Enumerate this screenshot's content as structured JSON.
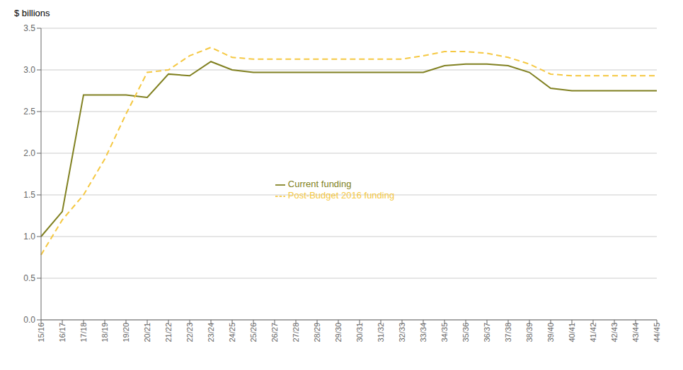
{
  "chart_data": {
    "type": "line",
    "ylabel": "$ billions",
    "categories": [
      "15/16",
      "16/17",
      "17/18",
      "18/19",
      "19/20",
      "20/21",
      "21/22",
      "22/23",
      "23/24",
      "24/25",
      "25/26",
      "26/27",
      "27/28",
      "28/29",
      "29/30",
      "30/31",
      "31/32",
      "32/33",
      "33/34",
      "34/35",
      "35/36",
      "36/37",
      "37/38",
      "38/39",
      "39/40",
      "40/41",
      "41/42",
      "42/43",
      "43/44",
      "44/45"
    ],
    "series": [
      {
        "name": "Current funding",
        "color": "#808020",
        "line_style": "solid",
        "values": [
          1.0,
          1.3,
          2.7,
          2.7,
          2.7,
          2.67,
          2.95,
          2.93,
          3.1,
          3.0,
          2.97,
          2.97,
          2.97,
          2.97,
          2.97,
          2.97,
          2.97,
          2.97,
          2.97,
          3.05,
          3.07,
          3.07,
          3.05,
          2.97,
          2.78,
          2.75,
          2.75,
          2.75,
          2.75,
          2.75
        ]
      },
      {
        "name": "Post-Budget 2016 funding",
        "color": "#F5C842",
        "line_style": "dashed",
        "values": [
          0.78,
          1.2,
          1.5,
          1.93,
          2.47,
          2.97,
          3.0,
          3.17,
          3.27,
          3.15,
          3.13,
          3.13,
          3.13,
          3.13,
          3.13,
          3.13,
          3.13,
          3.13,
          3.17,
          3.22,
          3.22,
          3.2,
          3.15,
          3.07,
          2.95,
          2.93,
          2.93,
          2.93,
          2.93,
          2.93
        ]
      }
    ],
    "ylim": [
      0.0,
      3.5
    ],
    "yticks": [
      {
        "value": 0.0,
        "label": "0.0"
      },
      0.5,
      {
        "value": 1.0,
        "label": "1.0"
      },
      1.5,
      {
        "value": 2.0,
        "label": "2.0"
      },
      2.5,
      {
        "value": 3.0,
        "label": "3.0"
      },
      3.5
    ],
    "grid": true,
    "legend": "center"
  }
}
